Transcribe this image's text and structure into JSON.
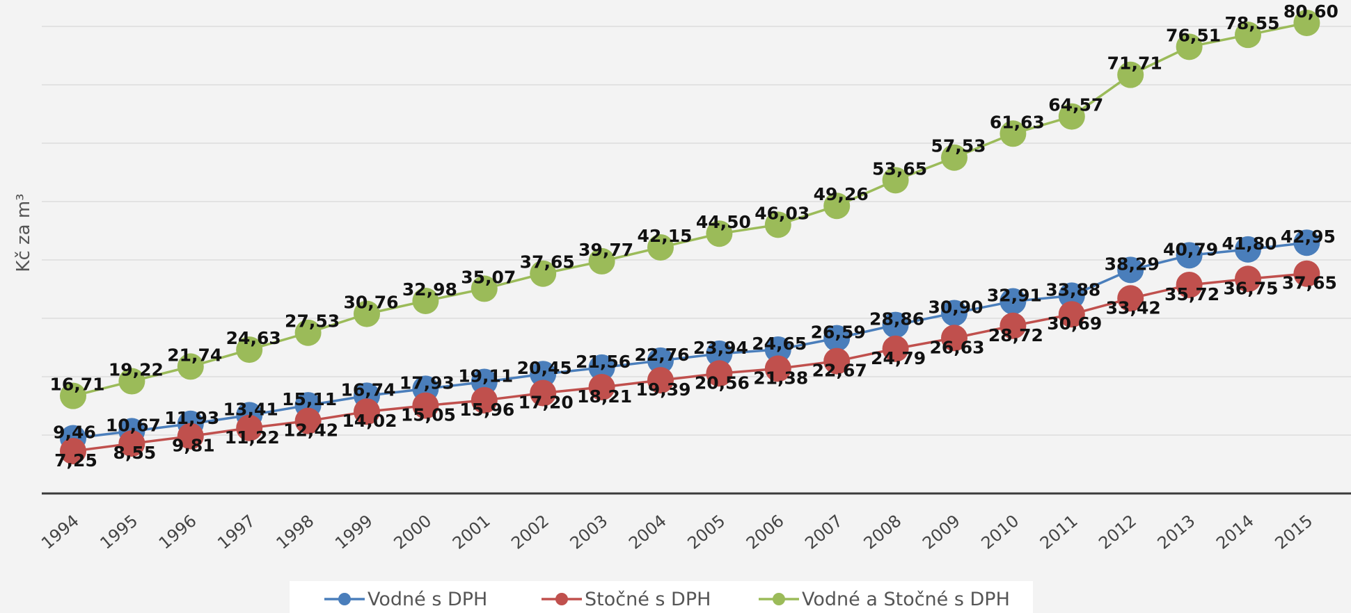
{
  "chart_data": {
    "type": "line",
    "title": "",
    "xlabel": "",
    "ylabel": "Kč za m³",
    "ylim": [
      0,
      90
    ],
    "grid": true,
    "legend_position": "bottom",
    "categories": [
      "1994",
      "1995",
      "1996",
      "1997",
      "1998",
      "1999",
      "2000",
      "2001",
      "2002",
      "2003",
      "2004",
      "2005",
      "2006",
      "2007",
      "2008",
      "2009",
      "2010",
      "2011",
      "2012",
      "2013",
      "2014",
      "2015"
    ],
    "series": [
      {
        "name": "Vodné s DPH",
        "color": "#4a7ebb",
        "values": [
          9.46,
          10.67,
          11.93,
          13.41,
          15.11,
          16.74,
          17.93,
          19.11,
          20.45,
          21.56,
          22.76,
          23.94,
          24.65,
          26.59,
          28.86,
          30.9,
          32.91,
          33.88,
          38.29,
          40.79,
          41.8,
          42.95
        ],
        "labels": [
          "9,46",
          "10,67",
          "11,93",
          "13,41",
          "15,11",
          "16,74",
          "17,93",
          "19,11",
          "20,45",
          "21,56",
          "22,76",
          "23,94",
          "24,65",
          "26,59",
          "28,86",
          "30,90",
          "32,91",
          "33,88",
          "38,29",
          "40,79",
          "41,80",
          "42,95"
        ]
      },
      {
        "name": "Stočné s DPH",
        "color": "#c0504d",
        "values": [
          7.25,
          8.55,
          9.81,
          11.22,
          12.42,
          14.02,
          15.05,
          15.96,
          17.2,
          18.21,
          19.39,
          20.56,
          21.38,
          22.67,
          24.79,
          26.63,
          28.72,
          30.69,
          33.42,
          35.72,
          36.75,
          37.65
        ],
        "labels": [
          "7,25",
          "8,55",
          "9,81",
          "11,22",
          "12,42",
          "14,02",
          "15,05",
          "15,96",
          "17,20",
          "18,21",
          "19,39",
          "20,56",
          "21,38",
          "22,67",
          "24,79",
          "26,63",
          "28,72",
          "30,69",
          "33,42",
          "35,72",
          "36,75",
          "37,65"
        ]
      },
      {
        "name": "Vodné a Stočné s DPH",
        "color": "#9bbb59",
        "values": [
          16.71,
          19.22,
          21.74,
          24.63,
          27.53,
          30.76,
          32.98,
          35.07,
          37.65,
          39.77,
          42.15,
          44.5,
          46.03,
          49.26,
          53.65,
          57.53,
          61.63,
          64.57,
          71.71,
          76.51,
          78.55,
          80.6
        ],
        "labels": [
          "16,71",
          "19,22",
          "21,74",
          "24,63",
          "27,53",
          "30,76",
          "32,98",
          "35,07",
          "37,65",
          "39,77",
          "42,15",
          "44,50",
          "46,03",
          "49,26",
          "53,65",
          "57,53",
          "61,63",
          "64,57",
          "71,71",
          "76,51",
          "78,55",
          "80,60"
        ]
      }
    ]
  }
}
